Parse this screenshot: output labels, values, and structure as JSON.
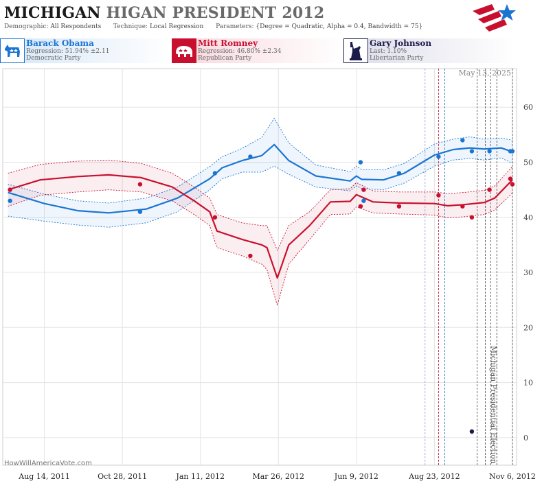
{
  "header": {
    "title_part1": "MICHIGAN",
    "title_part2": "HIGAN PRESIDENT 2012",
    "demographic_label": "Demographic:",
    "demographic_value": "All Respondents",
    "technique_label": "Technique:",
    "technique_value": "Local Regression",
    "parameters_label": "Parameters:",
    "parameters_value": "{Degree = Quadratic, Alpha = 0.4, Bandwidth = 75}"
  },
  "candidates": [
    {
      "name": "Barack Obama",
      "stat": "Regression: 51.94% ±2.11",
      "party": "Democratic Party",
      "color": "#1a75d2",
      "icon": "donkey-icon"
    },
    {
      "name": "Mitt Romney",
      "stat": "Regression: 46.80% ±2.34",
      "party": "Republican Party",
      "color": "#c8102e",
      "icon": "elephant-icon"
    },
    {
      "name": "Gary Johnson",
      "stat": "Last: 1.10%",
      "party": "Libertarian Party",
      "color": "#1c1c4a",
      "icon": "liberty-statue-icon"
    }
  ],
  "chart_data": {
    "type": "line",
    "date_stamp": "May 13, 2025",
    "watermark": "HowWillAmericaVote.com",
    "election_label": "Michigan Presidential Election",
    "x_ticks": [
      "Aug 14, 2011",
      "Oct 28, 2011",
      "Jan 11, 2012",
      "Mar 26, 2012",
      "Jun 9, 2012",
      "Aug 23, 2012",
      "Nov 6, 2012"
    ],
    "x_range": [
      "2011-07-05",
      "2012-11-10"
    ],
    "y_ticks": [
      0,
      10,
      20,
      30,
      40,
      50,
      60
    ],
    "ylim": [
      -5,
      67
    ],
    "grid": true,
    "event_lines": [
      {
        "date": "2012-08-14",
        "color": "#9aa8d8"
      },
      {
        "date": "2012-08-27",
        "color": "#c8102e"
      },
      {
        "date": "2012-09-02",
        "color": "#1a75d2"
      },
      {
        "date": "2012-10-03",
        "color": "#555555"
      },
      {
        "date": "2012-10-11",
        "color": "#555555"
      },
      {
        "date": "2012-10-16",
        "color": "#555555"
      },
      {
        "date": "2012-10-22",
        "color": "#555555"
      },
      {
        "date": "2012-11-06",
        "color": "#555555"
      }
    ],
    "series": [
      {
        "name": "Barack Obama",
        "color": "#1a75d2",
        "fit": [
          [
            "2011-07-10",
            44.5
          ],
          [
            "2011-08-14",
            42.5
          ],
          [
            "2011-09-15",
            41.2
          ],
          [
            "2011-10-15",
            40.8
          ],
          [
            "2011-11-20",
            41.5
          ],
          [
            "2011-12-20",
            43.5
          ],
          [
            "2012-01-20",
            47.0
          ],
          [
            "2012-02-01",
            49.0
          ],
          [
            "2012-02-20",
            50.3
          ],
          [
            "2012-03-10",
            51.2
          ],
          [
            "2012-03-22",
            53.2
          ],
          [
            "2012-04-05",
            50.3
          ],
          [
            "2012-05-01",
            47.5
          ],
          [
            "2012-06-03",
            46.6
          ],
          [
            "2012-06-09",
            47.5
          ],
          [
            "2012-06-14",
            46.9
          ],
          [
            "2012-07-05",
            46.8
          ],
          [
            "2012-07-25",
            48.0
          ],
          [
            "2012-08-23",
            51.3
          ],
          [
            "2012-09-10",
            52.3
          ],
          [
            "2012-09-26",
            52.6
          ],
          [
            "2012-10-10",
            52.4
          ],
          [
            "2012-10-26",
            52.6
          ],
          [
            "2012-11-06",
            51.9
          ]
        ],
        "band": [
          [
            "2011-07-10",
            46.0,
            40.2
          ],
          [
            "2011-08-14",
            44.2,
            39.3
          ],
          [
            "2011-09-15",
            43.0,
            38.6
          ],
          [
            "2011-10-15",
            42.6,
            38.2
          ],
          [
            "2011-11-20",
            43.5,
            39.0
          ],
          [
            "2011-12-20",
            45.5,
            41.0
          ],
          [
            "2012-01-20",
            49.2,
            45.0
          ],
          [
            "2012-02-01",
            51.0,
            47.0
          ],
          [
            "2012-02-20",
            52.5,
            48.2
          ],
          [
            "2012-03-10",
            54.5,
            48.2
          ],
          [
            "2012-03-22",
            58.0,
            49.3
          ],
          [
            "2012-04-05",
            53.5,
            47.8
          ],
          [
            "2012-05-01",
            49.5,
            45.5
          ],
          [
            "2012-06-03",
            48.3,
            44.8
          ],
          [
            "2012-06-09",
            49.3,
            45.7
          ],
          [
            "2012-06-14",
            48.7,
            45.2
          ],
          [
            "2012-07-05",
            48.6,
            45.0
          ],
          [
            "2012-07-25",
            49.8,
            46.2
          ],
          [
            "2012-08-23",
            53.3,
            49.3
          ],
          [
            "2012-09-10",
            54.2,
            50.4
          ],
          [
            "2012-09-26",
            54.6,
            50.7
          ],
          [
            "2012-10-10",
            54.2,
            50.4
          ],
          [
            "2012-10-26",
            54.4,
            50.8
          ],
          [
            "2012-11-06",
            54.0,
            49.8
          ]
        ],
        "points": [
          [
            "2011-07-12",
            43.0
          ],
          [
            "2011-11-14",
            41.0
          ],
          [
            "2012-01-25",
            48.0
          ],
          [
            "2012-02-28",
            51.0
          ],
          [
            "2012-06-13",
            50.0
          ],
          [
            "2012-06-16",
            43.0
          ],
          [
            "2012-07-20",
            48.0
          ],
          [
            "2012-08-27",
            51.0
          ],
          [
            "2012-09-19",
            54.0
          ],
          [
            "2012-09-28",
            52.0
          ],
          [
            "2012-10-15",
            52.0
          ],
          [
            "2012-11-04",
            52.0
          ],
          [
            "2012-11-06",
            52.0
          ]
        ]
      },
      {
        "name": "Mitt Romney",
        "color": "#c8102e",
        "fit": [
          [
            "2011-07-10",
            45.0
          ],
          [
            "2011-08-10",
            46.8
          ],
          [
            "2011-09-15",
            47.4
          ],
          [
            "2011-10-15",
            47.7
          ],
          [
            "2011-11-15",
            47.2
          ],
          [
            "2011-12-15",
            45.5
          ],
          [
            "2012-01-05",
            43.0
          ],
          [
            "2012-01-20",
            41.0
          ],
          [
            "2012-01-27",
            37.5
          ],
          [
            "2012-02-20",
            36.0
          ],
          [
            "2012-03-10",
            35.0
          ],
          [
            "2012-03-15",
            34.5
          ],
          [
            "2012-03-25",
            29.0
          ],
          [
            "2012-04-05",
            35.0
          ],
          [
            "2012-04-25",
            38.5
          ],
          [
            "2012-05-15",
            42.8
          ],
          [
            "2012-06-03",
            42.9
          ],
          [
            "2012-06-09",
            44.1
          ],
          [
            "2012-06-25",
            42.8
          ],
          [
            "2012-07-20",
            42.6
          ],
          [
            "2012-08-23",
            42.5
          ],
          [
            "2012-09-05",
            42.1
          ],
          [
            "2012-09-20",
            42.3
          ],
          [
            "2012-10-10",
            42.7
          ],
          [
            "2012-10-20",
            43.5
          ],
          [
            "2012-11-06",
            46.8
          ]
        ],
        "band": [
          [
            "2011-07-10",
            48.0,
            42.0
          ],
          [
            "2011-08-10",
            49.6,
            44.0
          ],
          [
            "2011-09-15",
            50.2,
            44.6
          ],
          [
            "2011-10-15",
            50.4,
            45.0
          ],
          [
            "2011-11-15",
            49.8,
            44.6
          ],
          [
            "2011-12-15",
            48.0,
            43.0
          ],
          [
            "2012-01-05",
            45.5,
            40.5
          ],
          [
            "2012-01-20",
            43.5,
            38.5
          ],
          [
            "2012-01-27",
            40.5,
            34.5
          ],
          [
            "2012-02-20",
            39.0,
            33.0
          ],
          [
            "2012-03-10",
            38.5,
            31.5
          ],
          [
            "2012-03-15",
            38.5,
            30.5
          ],
          [
            "2012-03-25",
            34.0,
            24.0
          ],
          [
            "2012-04-05",
            38.5,
            31.5
          ],
          [
            "2012-04-25",
            41.0,
            36.0
          ],
          [
            "2012-05-15",
            45.0,
            40.5
          ],
          [
            "2012-06-03",
            45.2,
            40.6
          ],
          [
            "2012-06-09",
            46.3,
            41.9
          ],
          [
            "2012-06-25",
            44.8,
            40.8
          ],
          [
            "2012-07-20",
            44.6,
            40.6
          ],
          [
            "2012-08-23",
            44.6,
            40.4
          ],
          [
            "2012-09-05",
            44.3,
            39.9
          ],
          [
            "2012-09-20",
            44.5,
            40.1
          ],
          [
            "2012-10-10",
            44.9,
            40.5
          ],
          [
            "2012-10-20",
            45.7,
            41.3
          ],
          [
            "2012-11-06",
            49.2,
            44.4
          ]
        ],
        "points": [
          [
            "2011-07-12",
            45.0
          ],
          [
            "2011-11-14",
            46.0
          ],
          [
            "2012-01-25",
            40.0
          ],
          [
            "2012-02-28",
            33.0
          ],
          [
            "2012-06-13",
            42.0
          ],
          [
            "2012-06-16",
            45.0
          ],
          [
            "2012-07-20",
            42.0
          ],
          [
            "2012-08-27",
            44.0
          ],
          [
            "2012-09-19",
            42.0
          ],
          [
            "2012-09-28",
            40.0
          ],
          [
            "2012-10-15",
            45.0
          ],
          [
            "2012-11-04",
            47.0
          ],
          [
            "2012-11-06",
            46.0
          ]
        ]
      },
      {
        "name": "Gary Johnson",
        "color": "#1c1c4a",
        "points": [
          [
            "2012-09-28",
            1.1
          ]
        ]
      }
    ]
  }
}
